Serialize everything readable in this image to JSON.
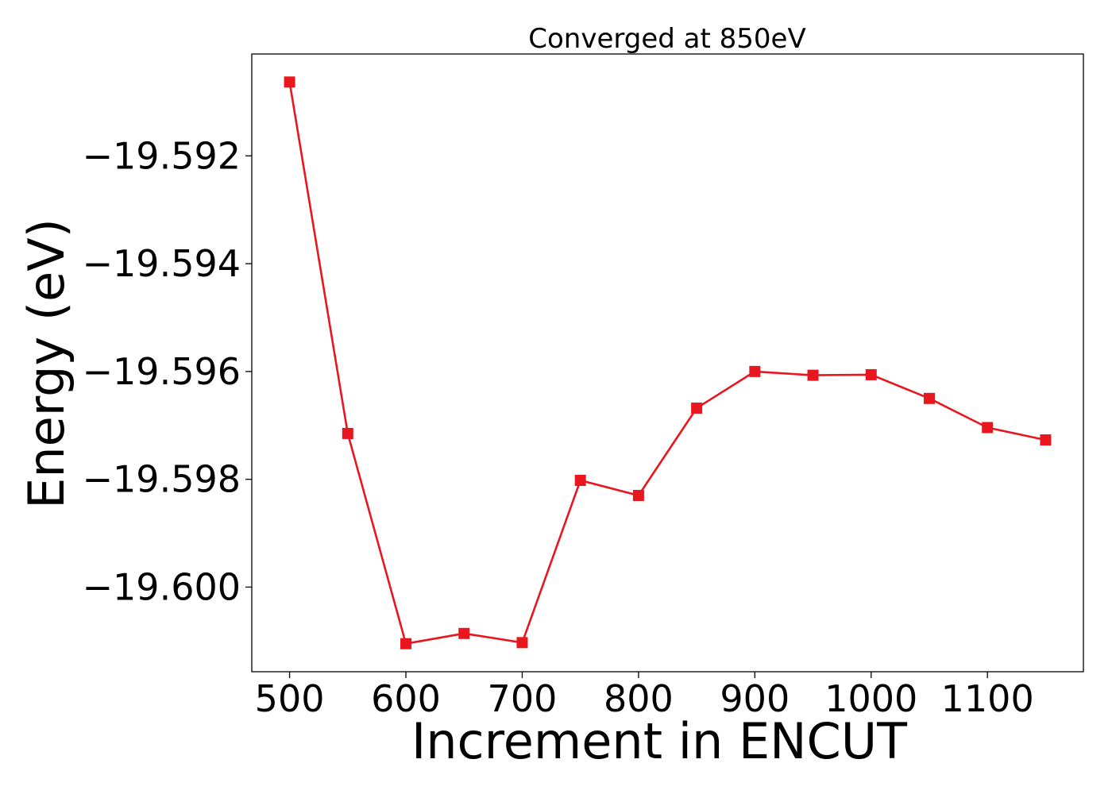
{
  "chart_data": {
    "type": "line",
    "title": "Converged at 850eV",
    "xlabel": "Increment in ENCUT",
    "ylabel": "Energy (eV)",
    "x": [
      500,
      550,
      600,
      650,
      700,
      750,
      800,
      850,
      900,
      950,
      1000,
      1050,
      1100,
      1150
    ],
    "series": [
      {
        "values": [
          -19.59063,
          -19.59715,
          -19.60105,
          -19.60086,
          -19.60103,
          -19.59802,
          -19.5983,
          -19.59668,
          -19.596,
          -19.59607,
          -19.59606,
          -19.5965,
          -19.59704,
          -19.59727
        ],
        "color": "#e8161e",
        "marker": "square"
      }
    ],
    "xlim": [
      467.5,
      1182.5
    ],
    "ylim": [
      -19.60157,
      -19.59011
    ],
    "xticks": [
      500,
      600,
      700,
      800,
      900,
      1000,
      1100
    ],
    "xtick_labels": [
      "500",
      "600",
      "700",
      "800",
      "900",
      "1000",
      "1100"
    ],
    "yticks": [
      -19.592,
      -19.594,
      -19.596,
      -19.598,
      -19.6
    ],
    "ytick_labels": [
      "−19.592",
      "−19.594",
      "−19.596",
      "−19.598",
      "−19.600"
    ],
    "grid": false,
    "legend": "none"
  }
}
